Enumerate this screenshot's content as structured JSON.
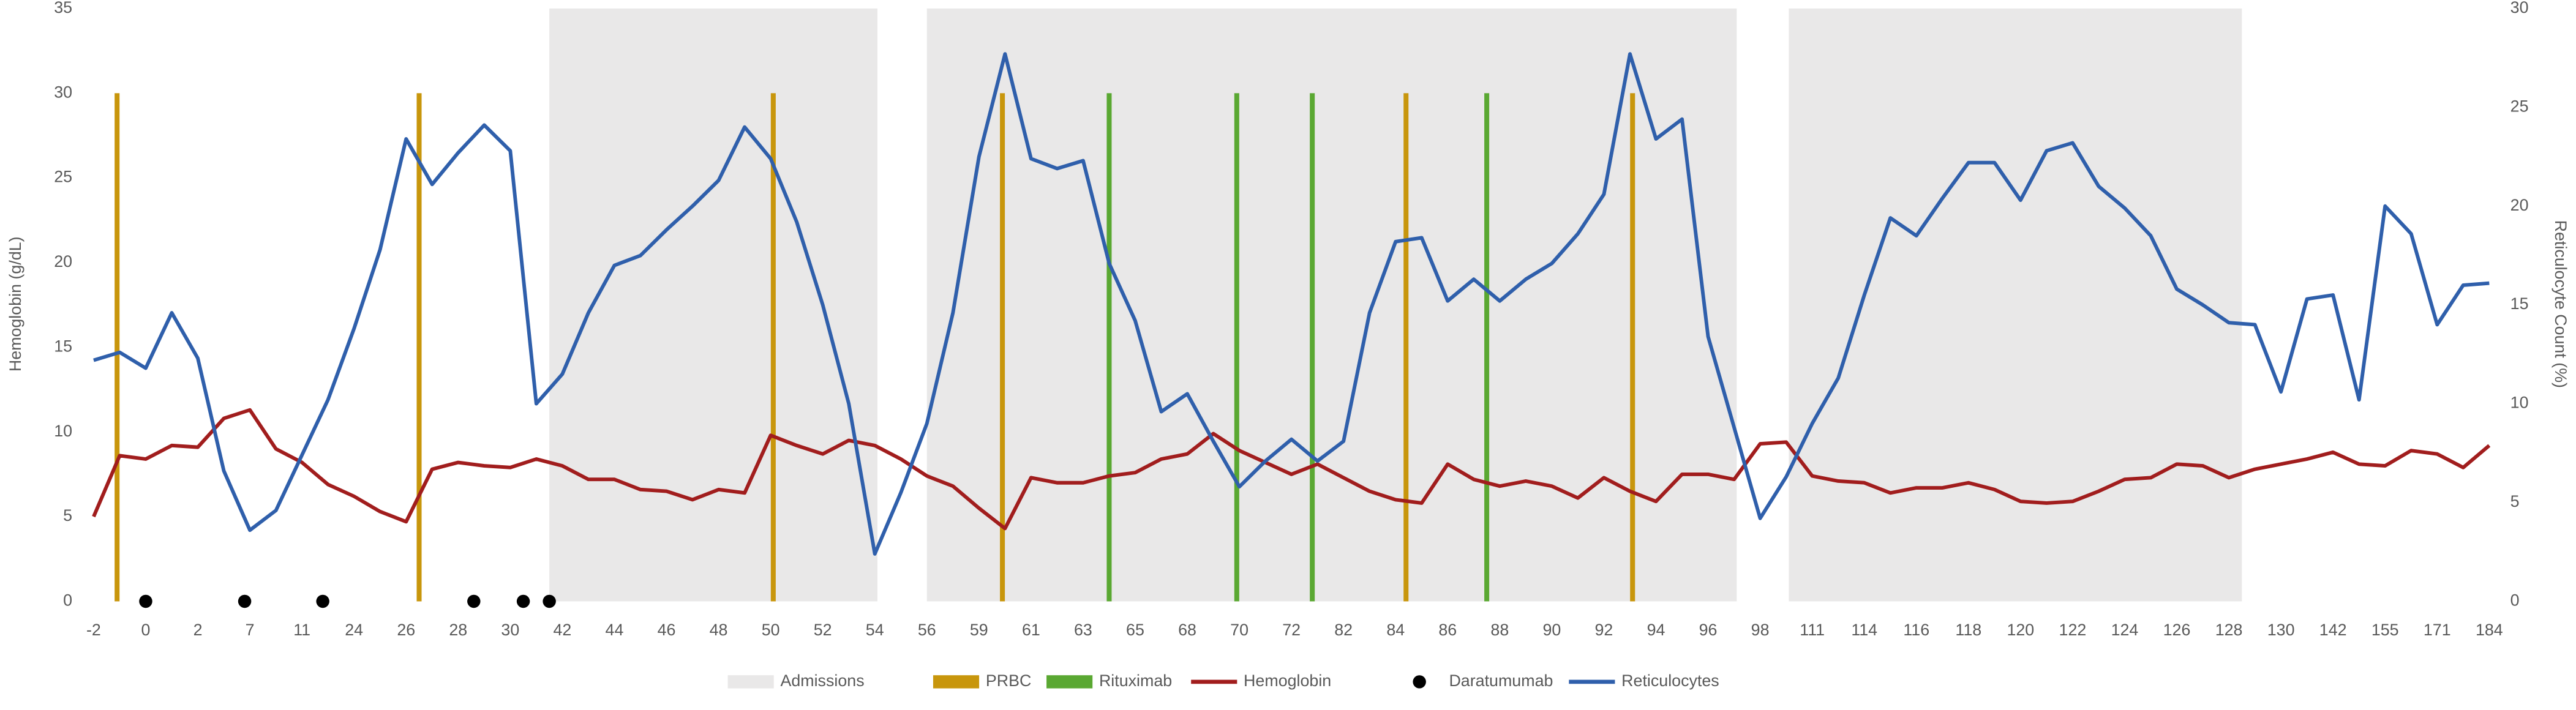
{
  "chart_data": {
    "type": "line",
    "y_label": "Hemoglobin (g/dL)",
    "y2_label": "Reticulocyte Count (%)",
    "categories": [
      -2,
      null,
      0,
      null,
      2,
      null,
      7,
      null,
      11,
      null,
      24,
      null,
      26,
      null,
      28,
      null,
      30,
      null,
      42,
      null,
      44,
      null,
      46,
      null,
      48,
      null,
      50,
      null,
      52,
      null,
      54,
      null,
      56,
      null,
      59,
      null,
      61,
      null,
      63,
      null,
      65,
      null,
      68,
      null,
      70,
      null,
      72,
      null,
      82,
      null,
      84,
      null,
      86,
      null,
      88,
      null,
      90,
      null,
      92,
      null,
      94,
      null,
      96,
      null,
      98,
      null,
      111,
      null,
      114,
      null,
      116,
      null,
      118,
      null,
      120,
      null,
      122,
      null,
      124,
      null,
      126,
      null,
      128,
      null,
      130,
      null,
      142,
      null,
      155,
      null,
      171,
      null,
      184
    ],
    "ylim": [
      0,
      35
    ],
    "yticks": [
      0,
      5,
      10,
      15,
      20,
      25,
      30,
      35
    ],
    "y2lim": [
      0,
      30
    ],
    "y2ticks": [
      0,
      5,
      10,
      15,
      20,
      25,
      30
    ],
    "series": [
      {
        "name": "Hemoglobin",
        "color": "#a11d1d",
        "values": [
          5,
          8.6,
          8.4,
          9.2,
          9.1,
          10.8,
          11.3,
          9,
          8.2,
          6.9,
          6.2,
          5.3,
          4.7,
          7.8,
          8.2,
          8,
          7.9,
          8.4,
          8,
          7.2,
          7.2,
          6.6,
          6.5,
          6,
          6.6,
          6.4,
          9.8,
          9.2,
          8.7,
          9.5,
          9.2,
          8.4,
          7.4,
          6.8,
          5.5,
          4.3,
          7.3,
          7,
          7,
          7.4,
          7.6,
          8.4,
          8.7,
          9.9,
          8.9,
          8.2,
          7.5,
          8.1,
          7.3,
          6.5,
          6,
          5.8,
          8.1,
          7.2,
          6.8,
          7.1,
          6.8,
          6.1,
          7.3,
          6.5,
          5.9,
          7.5,
          7.5,
          7.2,
          9.3,
          9.4,
          7.4,
          7.1,
          7,
          6.4,
          6.7,
          6.7,
          7,
          6.6,
          5.9,
          5.8,
          5.9,
          6.5,
          7.2,
          7.3,
          8.1,
          8,
          7.3,
          7.8,
          8.1,
          8.4,
          8.8,
          8.1,
          8,
          8.9,
          8.7,
          7.9,
          9.2
        ]
      },
      {
        "name": "Reticulocytes",
        "color": "#2f5fab",
        "axis": "y2",
        "values": [
          12.2,
          12.6,
          11.8,
          14.6,
          12.3,
          6.6,
          3.6,
          4.6,
          7.4,
          10.2,
          13.8,
          17.8,
          23.4,
          21.1,
          22.7,
          24.1,
          22.8,
          10,
          11.5,
          14.6,
          17,
          17.5,
          18.8,
          20,
          21.3,
          24,
          22.4,
          19.2,
          15,
          10,
          2.4,
          5.5,
          9,
          14.6,
          22.5,
          27.7,
          22.4,
          21.9,
          22.3,
          17.1,
          14.2,
          9.6,
          10.5,
          8.1,
          5.8,
          7.1,
          8.2,
          7.1,
          8.1,
          14.6,
          18.2,
          18.4,
          15.2,
          16.3,
          15.2,
          16.3,
          17.1,
          18.6,
          20.6,
          27.7,
          23.4,
          24.4,
          13.4,
          8.8,
          4.2,
          6.3,
          9,
          11.3,
          15.5,
          19.4,
          18.5,
          20.4,
          22.2,
          22.2,
          20.3,
          22.8,
          23.2,
          21,
          19.9,
          18.5,
          15.8,
          15,
          14.1,
          14,
          10.6,
          15.3,
          15.5,
          10.2,
          20,
          18.6,
          14,
          16,
          16.1
        ]
      }
    ],
    "shaded": {
      "name": "Admissions",
      "color": "#e9e8e8",
      "ranges": [
        [
          17.5,
          30.1
        ],
        [
          32,
          63.1
        ],
        [
          65.1,
          82.5
        ]
      ]
    },
    "event_lines": [
      {
        "name": "PRBC",
        "color": "#c8960c",
        "top": 30,
        "positions": [
          0.9,
          12.5,
          26.1,
          34.9,
          50.4,
          59.1
        ]
      },
      {
        "name": "Rituximab",
        "color": "#5aa832",
        "top": 30,
        "positions": [
          39,
          43.9,
          46.8,
          53.5
        ]
      }
    ],
    "markers": {
      "name": "Daratumumab",
      "color": "#000000",
      "value": 0,
      "positions": [
        2,
        5.8,
        8.8,
        14.6,
        16.5,
        17.5
      ]
    }
  }
}
